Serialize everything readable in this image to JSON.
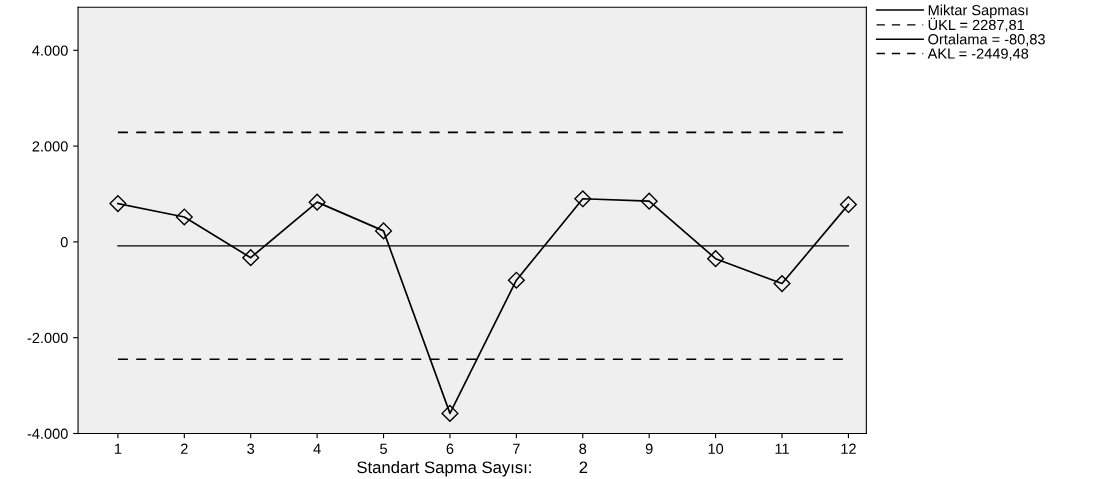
{
  "chart_data": {
    "type": "line",
    "xlabel": "Standart Sapma Sayısı:          2",
    "categories": [
      "1",
      "2",
      "3",
      "4",
      "5",
      "6",
      "7",
      "8",
      "9",
      "10",
      "11",
      "12"
    ],
    "series": [
      {
        "name": "Miktar Sapması",
        "color": "#000000",
        "values": [
          800,
          520,
          -330,
          830,
          230,
          -3580,
          -800,
          900,
          850,
          -350,
          -870,
          780
        ]
      }
    ],
    "ylim": [
      -4000,
      4900
    ],
    "yticks": [
      {
        "value": -4000,
        "label": "-4.000"
      },
      {
        "value": -2000,
        "label": "-2.000"
      },
      0,
      {
        "value": 2000,
        "label": "2.000"
      },
      {
        "value": 4000,
        "label": "4.000"
      }
    ],
    "ref_lines": [
      {
        "axis": "y",
        "value": 2287.81,
        "label": "ÜKL = 2287,81",
        "color": "#000000",
        "line_style": "dashed"
      },
      {
        "axis": "y",
        "value": -80.83,
        "label": "Ortalama = -80,83",
        "color": "#000000",
        "line_style": "solid"
      },
      {
        "axis": "y",
        "value": -2449.48,
        "label": "AKL = -2449,48",
        "color": "#000000",
        "line_style": "dashed"
      }
    ],
    "marker": "diamond",
    "line_style": "solid",
    "grid": false,
    "legend": "top right"
  }
}
